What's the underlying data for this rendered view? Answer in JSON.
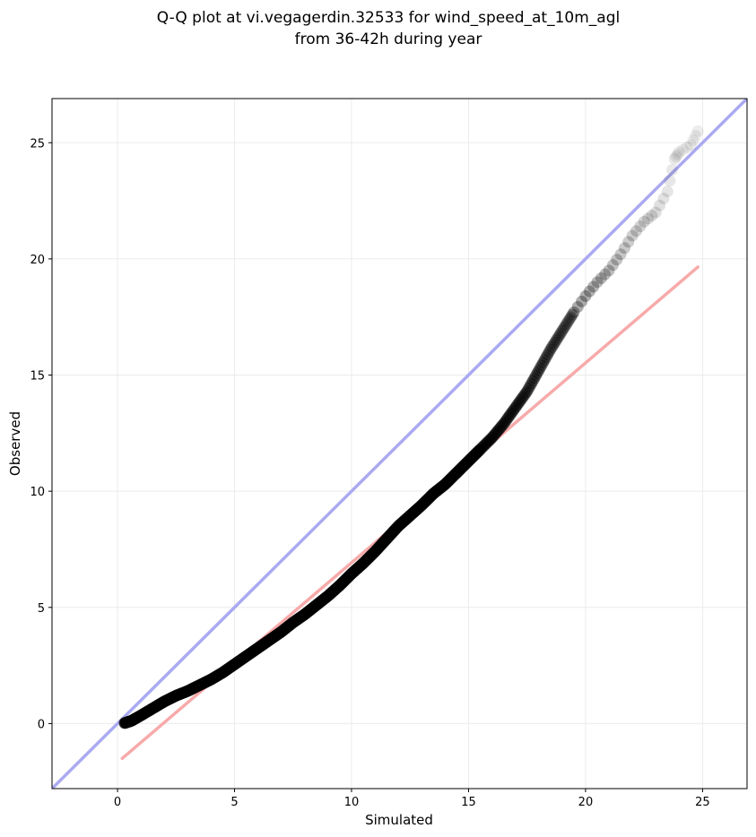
{
  "chart_data": {
    "type": "scatter",
    "title_lines": [
      "Q-Q plot at vi.vegagerdin.32533 for wind_speed_at_10m_agl",
      "from 36-42h during year"
    ],
    "xlabel": "Simulated",
    "ylabel": "Observed",
    "xlim": [
      -2.8,
      26.9
    ],
    "ylim": [
      -2.8,
      26.9
    ],
    "xticks": [
      0,
      5,
      10,
      15,
      20,
      25
    ],
    "yticks": [
      0,
      5,
      10,
      15,
      20,
      25
    ],
    "grid": true,
    "reference_lines": [
      {
        "kind": "identity",
        "color": "#aaaaf2",
        "points": [
          [
            -2.8,
            -2.8
          ],
          [
            26.9,
            26.9
          ]
        ]
      },
      {
        "kind": "fit",
        "color": "#f7aaaa",
        "points": [
          [
            0.2,
            -1.5
          ],
          [
            24.8,
            19.65
          ]
        ]
      }
    ],
    "quantile_curve": {
      "color": "#000000",
      "points": [
        [
          0.3,
          0.02
        ],
        [
          0.6,
          0.12
        ],
        [
          1.0,
          0.35
        ],
        [
          1.5,
          0.65
        ],
        [
          2.0,
          0.95
        ],
        [
          2.5,
          1.2
        ],
        [
          3.0,
          1.4
        ],
        [
          3.5,
          1.65
        ],
        [
          4.0,
          1.9
        ],
        [
          4.5,
          2.2
        ],
        [
          5.0,
          2.55
        ],
        [
          5.5,
          2.9
        ],
        [
          6.0,
          3.25
        ],
        [
          6.5,
          3.6
        ],
        [
          7.0,
          3.95
        ],
        [
          7.5,
          4.35
        ],
        [
          8.0,
          4.7
        ],
        [
          8.5,
          5.1
        ],
        [
          9.0,
          5.5
        ],
        [
          9.5,
          5.95
        ],
        [
          10.0,
          6.45
        ],
        [
          10.5,
          6.9
        ],
        [
          11.0,
          7.4
        ],
        [
          11.5,
          7.95
        ],
        [
          12.0,
          8.5
        ],
        [
          12.5,
          8.95
        ],
        [
          13.0,
          9.4
        ],
        [
          13.5,
          9.9
        ],
        [
          14.0,
          10.3
        ],
        [
          14.5,
          10.8
        ],
        [
          15.0,
          11.3
        ],
        [
          15.5,
          11.8
        ],
        [
          16.0,
          12.3
        ],
        [
          16.5,
          12.9
        ],
        [
          17.0,
          13.6
        ],
        [
          17.5,
          14.3
        ],
        [
          18.0,
          15.2
        ],
        [
          18.5,
          16.1
        ],
        [
          19.0,
          16.9
        ],
        [
          19.5,
          17.7
        ],
        [
          20.0,
          18.4
        ],
        [
          20.5,
          19.0
        ],
        [
          21.0,
          19.5
        ],
        [
          21.5,
          20.2
        ],
        [
          22.0,
          21.0
        ],
        [
          22.5,
          21.6
        ],
        [
          23.0,
          22.0
        ],
        [
          23.5,
          22.9
        ],
        [
          23.8,
          24.3
        ],
        [
          24.0,
          24.6
        ],
        [
          24.5,
          24.9
        ],
        [
          24.8,
          25.5
        ]
      ]
    }
  }
}
